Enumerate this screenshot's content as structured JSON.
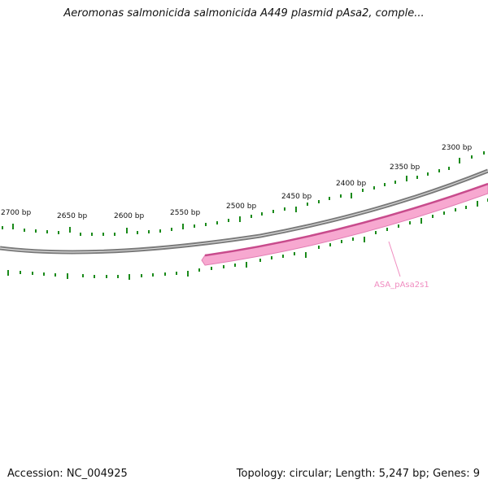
{
  "title": "Aeromonas salmonicida salmonicida A449 plasmid pAsa2, comple...",
  "footer": {
    "accession": "Accession: NC_004925",
    "summary": "Topology: circular; Length: 5,247 bp; Genes: 9"
  },
  "plasmid": {
    "topology": "circular",
    "length_bp": 5247,
    "gene_count": 9
  },
  "ruler": {
    "unit": "bp",
    "labels": [
      "2300 bp",
      "2350 bp",
      "2400 bp",
      "2450 bp",
      "2500 bp",
      "2550 bp",
      "2600 bp",
      "2650 bp",
      "2700 bp"
    ]
  },
  "genes": [
    {
      "label": "ASA_pAsa2s1",
      "color": "#f7a8d0",
      "strand": "reverse"
    }
  ],
  "colors": {
    "backbone": "#7a7a7a",
    "ticks": "#1a8a1a",
    "gene_fill": "#f7a8d0",
    "gene_edge": "#d9559a",
    "gene_label": "#f08cc0"
  }
}
